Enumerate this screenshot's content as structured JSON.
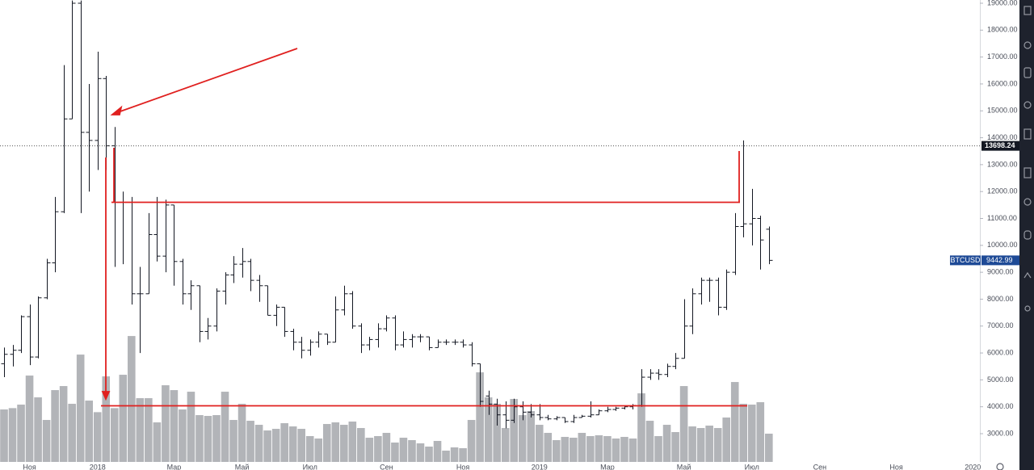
{
  "chart_data": {
    "type": "ohlc",
    "symbol": "BTCUSD",
    "last_price": 9442.99,
    "marked_level": 13698.24,
    "categories": [
      null,
      null,
      null,
      "Ноя",
      null,
      null,
      null,
      null,
      null,
      null,
      null,
      "2018",
      null,
      null,
      null,
      null,
      null,
      null,
      null,
      null,
      "Мар",
      null,
      null,
      null,
      null,
      null,
      null,
      null,
      "Май",
      null,
      null,
      null,
      null,
      null,
      null,
      null,
      "Июл",
      null,
      null,
      null,
      null,
      null,
      null,
      null,
      null,
      "Сен",
      null,
      null,
      null,
      null,
      null,
      null,
      null,
      null,
      "Ноя",
      null,
      null,
      null,
      null,
      null,
      null,
      null,
      null,
      "2019",
      null,
      null,
      null,
      null,
      null,
      null,
      null,
      "Мар",
      null,
      null,
      null,
      null,
      null,
      null,
      null,
      null,
      "Май",
      null,
      null,
      null,
      null,
      null,
      null,
      null,
      "Июл",
      null,
      null,
      null,
      null,
      null,
      null,
      null,
      "Сен",
      null,
      null,
      null,
      null,
      null,
      null,
      null,
      null,
      "Ноя",
      null,
      null,
      null,
      null,
      null,
      null,
      null,
      null,
      "2020"
    ],
    "open": [
      5600,
      5950,
      6100,
      7350,
      5850,
      8050,
      9350,
      11250,
      14700,
      19000,
      14200,
      13900,
      16200,
      13700,
      11600,
      11600,
      8200,
      8200,
      10400,
      9600,
      11500,
      9400,
      8200,
      8500,
      6800,
      7000,
      8300,
      8900,
      9300,
      9400,
      8700,
      8500,
      7400,
      7700,
      6800,
      6400,
      6100,
      6400,
      6700,
      6400,
      7600,
      8200,
      7000,
      6300,
      6500,
      6900,
      7300,
      6300,
      6500,
      6600,
      6600,
      6200,
      6400,
      6400,
      6400,
      6300,
      5600,
      4400,
      4100,
      3700,
      3500,
      4000,
      3800,
      3700,
      3600,
      3550,
      3600,
      3450,
      3600,
      3650,
      3700,
      3850,
      3900,
      3950,
      4000,
      4050,
      5100,
      5250,
      5200,
      5500,
      5800,
      7000,
      8200,
      8700,
      8700,
      7700,
      9000,
      10700,
      10800,
      11000,
      10600,
      null,
      null,
      null,
      null,
      null,
      null,
      null,
      null,
      null,
      null,
      null,
      null,
      null,
      null,
      null,
      null,
      null,
      null,
      null,
      null,
      null,
      null,
      null,
      null
    ],
    "high": [
      6200,
      6300,
      7400,
      7800,
      8100,
      9500,
      11800,
      16700,
      19100,
      19100,
      16000,
      17200,
      16300,
      14400,
      12000,
      11800,
      9200,
      11200,
      11800,
      11700,
      11500,
      9500,
      8700,
      8500,
      7300,
      8400,
      9000,
      9600,
      9900,
      9500,
      8900,
      8500,
      7800,
      7700,
      6900,
      6600,
      6500,
      6800,
      6700,
      8100,
      8500,
      8300,
      7100,
      6600,
      7100,
      7400,
      7400,
      6800,
      6700,
      6700,
      6600,
      6500,
      6500,
      6500,
      6500,
      6400,
      5600,
      4600,
      4300,
      4200,
      4300,
      4200,
      4100,
      4100,
      3700,
      3650,
      3600,
      3700,
      3700,
      4200,
      3900,
      4000,
      4000,
      4050,
      4100,
      5400,
      5400,
      5400,
      5600,
      6000,
      8000,
      8400,
      8800,
      8800,
      8800,
      9100,
      11200,
      13900,
      12100,
      11100,
      10700,
      null,
      null,
      null,
      null,
      null,
      null,
      null,
      null,
      null,
      null,
      null,
      null,
      null,
      null,
      null,
      null,
      null,
      null,
      null,
      null,
      null,
      null,
      null,
      null
    ],
    "low": [
      5100,
      5500,
      6000,
      5550,
      5800,
      8000,
      9000,
      11200,
      14700,
      11200,
      12000,
      12800,
      12800,
      9200,
      9300,
      7800,
      6000,
      8200,
      9400,
      9000,
      8500,
      7800,
      7600,
      6400,
      6500,
      6800,
      7800,
      8600,
      8800,
      8300,
      7900,
      7400,
      7000,
      6600,
      6100,
      5800,
      5900,
      6200,
      6300,
      6400,
      7400,
      6900,
      6000,
      6100,
      6200,
      6800,
      6100,
      6200,
      6200,
      6400,
      6100,
      6200,
      6300,
      6300,
      6200,
      5500,
      4000,
      3700,
      3300,
      3200,
      3400,
      3500,
      3600,
      3500,
      3500,
      3500,
      3400,
      3400,
      3600,
      3600,
      3700,
      3800,
      3850,
      3900,
      3900,
      4000,
      5000,
      5000,
      5100,
      5400,
      5800,
      6700,
      7800,
      7900,
      7400,
      7600,
      8900,
      10300,
      10000,
      9100,
      9300,
      null,
      null,
      null,
      null,
      null,
      null,
      null,
      null,
      null,
      null,
      null,
      null,
      null,
      null,
      null,
      null,
      null,
      null,
      null,
      null,
      null,
      null,
      null,
      null
    ],
    "close": [
      5950,
      6100,
      7350,
      5850,
      8050,
      9350,
      11250,
      14700,
      19000,
      14200,
      13900,
      16200,
      13700,
      11600,
      11600,
      8200,
      8200,
      10400,
      9600,
      11500,
      9400,
      8200,
      8500,
      6800,
      7000,
      8300,
      8900,
      9300,
      9400,
      8700,
      8500,
      7400,
      7700,
      6800,
      6400,
      6100,
      6400,
      6700,
      6400,
      7600,
      8200,
      7000,
      6300,
      6500,
      6900,
      7300,
      6300,
      6500,
      6600,
      6600,
      6200,
      6400,
      6400,
      6400,
      6300,
      5600,
      4200,
      4100,
      3700,
      3500,
      4000,
      3800,
      3700,
      3600,
      3550,
      3600,
      3450,
      3600,
      3650,
      3700,
      3850,
      3900,
      3950,
      4000,
      4050,
      5100,
      5250,
      5200,
      5500,
      5800,
      7000,
      8200,
      8700,
      8700,
      7700,
      9000,
      10700,
      10800,
      11000,
      10200,
      9442.99,
      null,
      null,
      null,
      null,
      null,
      null,
      null,
      null,
      null,
      null,
      null,
      null,
      null,
      null,
      null,
      null,
      null,
      null,
      null,
      null,
      null,
      null,
      null,
      null
    ],
    "volume": [
      3900,
      3950,
      4080,
      5160,
      4350,
      3510,
      4620,
      4770,
      4110,
      5940,
      4230,
      3800,
      5130,
      3950,
      5190,
      6630,
      4320,
      4320,
      3420,
      4800,
      4620,
      3900,
      4560,
      3690,
      3660,
      3690,
      4560,
      3510,
      4110,
      3480,
      3330,
      3120,
      3180,
      3390,
      3270,
      3180,
      2910,
      2820,
      3360,
      3420,
      3330,
      3450,
      3210,
      2850,
      2910,
      3030,
      2670,
      2850,
      2760,
      2640,
      2520,
      2730,
      2370,
      2490,
      2460,
      3510,
      5280,
      4350,
      4110,
      3210,
      4290,
      3690,
      3840,
      3330,
      3030,
      2760,
      2880,
      2850,
      3030,
      2910,
      2940,
      2910,
      2820,
      2880,
      2820,
      4500,
      3480,
      2910,
      3330,
      3060,
      4770,
      3270,
      3210,
      3300,
      3210,
      3600,
      4920,
      4110,
      4080,
      4170,
      3000,
      null,
      null,
      null,
      null,
      null,
      null,
      null,
      null,
      null,
      null,
      null,
      null,
      null,
      null,
      null,
      null,
      null,
      null,
      null,
      null,
      null,
      null,
      null,
      null
    ],
    "bar_color": "#131722",
    "volume_color": "#b2b4b8",
    "tag_color": "#1e4a96",
    "level_tag_color": "#131722",
    "ylim": [
      1950,
      19120
    ],
    "yticks": [
      {
        "value": 3000,
        "label": "3000.00"
      },
      {
        "value": 4000,
        "label": "4000.00"
      },
      {
        "value": 5000,
        "label": "5000.00"
      },
      {
        "value": 6000,
        "label": "6000.00"
      },
      {
        "value": 7000,
        "label": "7000.00"
      },
      {
        "value": 8000,
        "label": "8000.00"
      },
      {
        "value": 9000,
        "label": "9000.00"
      },
      {
        "value": 10000,
        "label": "10000.00"
      },
      {
        "value": 11000,
        "label": "11000.00"
      },
      {
        "value": 12000,
        "label": "12000.00"
      },
      {
        "value": 13000,
        "label": "13000.00"
      },
      {
        "value": 14000,
        "label": "14000.00"
      },
      {
        "value": 15000,
        "label": "15000.00"
      },
      {
        "value": 16000,
        "label": "16000.00"
      },
      {
        "value": 17000,
        "label": "17000.00"
      },
      {
        "value": 18000,
        "label": "18000.00"
      },
      {
        "value": 19000,
        "label": "19000.00"
      }
    ],
    "grid": false
  }
}
